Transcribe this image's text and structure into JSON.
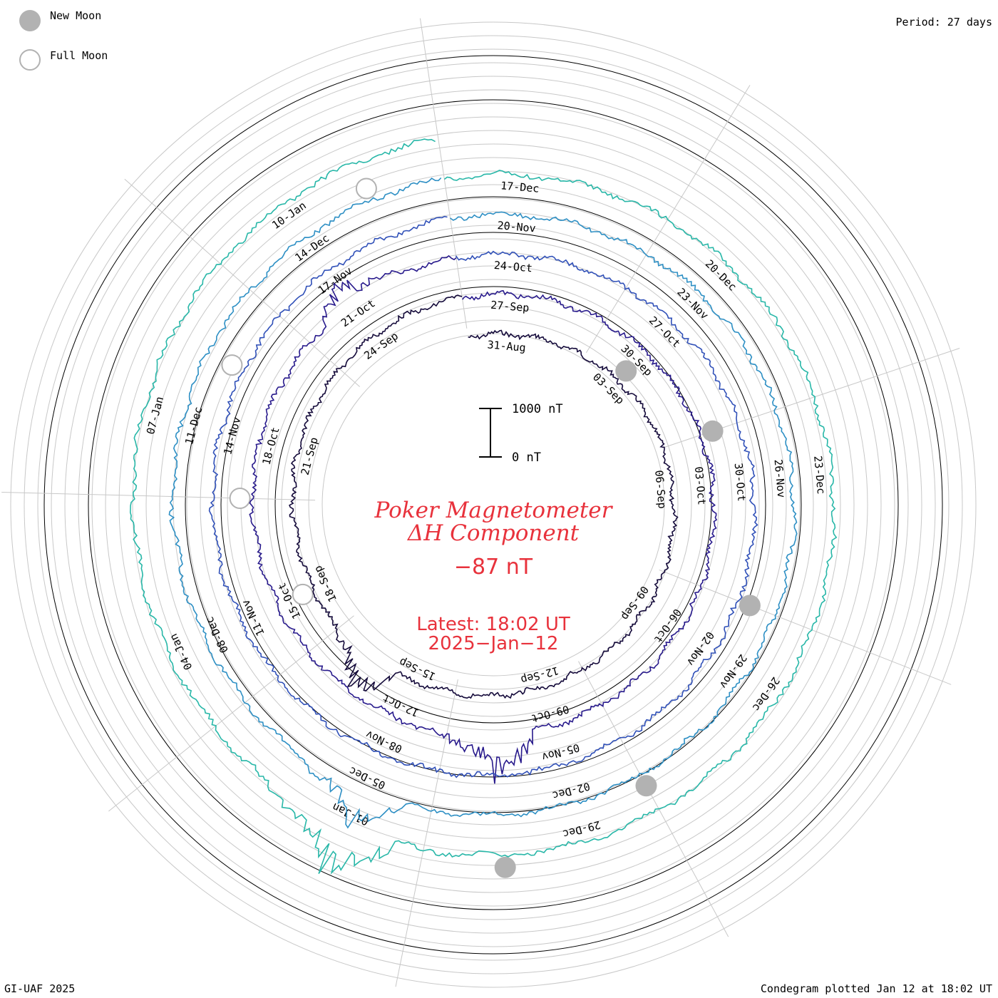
{
  "legend": {
    "new_moon_label": "New Moon",
    "full_moon_label": "Full Moon",
    "new_moon_color": "#b2b2b2",
    "full_moon_color": "#ffffff",
    "full_moon_stroke": "#b2b2b2"
  },
  "period_label": "Period: 27 days",
  "credit": "GI-UAF 2025",
  "plotted_label": "Condegram plotted Jan 12 at 18:02 UT",
  "center": {
    "title_line1": "Poker Magnetometer",
    "title_line2": "ΔH Component",
    "current_value": "−87 nT",
    "latest_label": "Latest: 18:02 UT",
    "latest_date": "2025−Jan−12"
  },
  "scale_bar": {
    "top_label": "1000 nT",
    "bottom_label": "0 nT",
    "top_value_nT": 1000,
    "bottom_value_nT": 0
  },
  "chart_data": {
    "type": "line",
    "subtype": "condegram-spiral",
    "period_days": 27,
    "start_date": "2024-08-30",
    "end_date": "2025-01-12",
    "latest_value_nT": -87,
    "grid": true,
    "axis_color_grid": "#c8c8c8",
    "date_labels": [
      {
        "label": "31-Aug",
        "date": "2024-08-31"
      },
      {
        "label": "03-Sep",
        "date": "2024-09-03"
      },
      {
        "label": "06-Sep",
        "date": "2024-09-06"
      },
      {
        "label": "09-Sep",
        "date": "2024-09-09"
      },
      {
        "label": "12-Sep",
        "date": "2024-09-12"
      },
      {
        "label": "15-Sep",
        "date": "2024-09-15"
      },
      {
        "label": "18-Sep",
        "date": "2024-09-18"
      },
      {
        "label": "21-Sep",
        "date": "2024-09-21"
      },
      {
        "label": "24-Sep",
        "date": "2024-09-24"
      },
      {
        "label": "27-Sep",
        "date": "2024-09-27"
      },
      {
        "label": "30-Sep",
        "date": "2024-09-30"
      },
      {
        "label": "03-Oct",
        "date": "2024-10-03"
      },
      {
        "label": "06-Oct",
        "date": "2024-10-06"
      },
      {
        "label": "09-Oct",
        "date": "2024-10-09"
      },
      {
        "label": "12-Oct",
        "date": "2024-10-12"
      },
      {
        "label": "15-Oct",
        "date": "2024-10-15"
      },
      {
        "label": "18-Oct",
        "date": "2024-10-18"
      },
      {
        "label": "21-Oct",
        "date": "2024-10-21"
      },
      {
        "label": "24-Oct",
        "date": "2024-10-24"
      },
      {
        "label": "27-Oct",
        "date": "2024-10-27"
      },
      {
        "label": "30-Oct",
        "date": "2024-10-30"
      },
      {
        "label": "02-Nov",
        "date": "2024-11-02"
      },
      {
        "label": "05-Nov",
        "date": "2024-11-05"
      },
      {
        "label": "08-Nov",
        "date": "2024-11-08"
      },
      {
        "label": "11-Nov",
        "date": "2024-11-11"
      },
      {
        "label": "14-Nov",
        "date": "2024-11-14"
      },
      {
        "label": "17-Nov",
        "date": "2024-11-17"
      },
      {
        "label": "20-Nov",
        "date": "2024-11-20"
      },
      {
        "label": "23-Nov",
        "date": "2024-11-23"
      },
      {
        "label": "26-Nov",
        "date": "2024-11-26"
      },
      {
        "label": "29-Nov",
        "date": "2024-11-29"
      },
      {
        "label": "02-Dec",
        "date": "2024-12-02"
      },
      {
        "label": "05-Dec",
        "date": "2024-12-05"
      },
      {
        "label": "08-Dec",
        "date": "2024-12-08"
      },
      {
        "label": "11-Dec",
        "date": "2024-12-11"
      },
      {
        "label": "14-Dec",
        "date": "2024-12-14"
      },
      {
        "label": "17-Dec",
        "date": "2024-12-17"
      },
      {
        "label": "20-Dec",
        "date": "2024-12-20"
      },
      {
        "label": "23-Dec",
        "date": "2024-12-23"
      },
      {
        "label": "26-Dec",
        "date": "2024-12-26"
      },
      {
        "label": "29-Dec",
        "date": "2024-12-29"
      },
      {
        "label": "01-Jan",
        "date": "2025-01-01"
      },
      {
        "label": "04-Jan",
        "date": "2025-01-04"
      },
      {
        "label": "07-Jan",
        "date": "2025-01-07"
      },
      {
        "label": "10-Jan",
        "date": "2025-01-10"
      }
    ],
    "moon_phases": [
      {
        "type": "new",
        "date": "2024-09-03"
      },
      {
        "type": "full",
        "date": "2024-09-18"
      },
      {
        "type": "new",
        "date": "2024-10-02"
      },
      {
        "type": "full",
        "date": "2024-10-17"
      },
      {
        "type": "new",
        "date": "2024-11-01"
      },
      {
        "type": "full",
        "date": "2024-11-15"
      },
      {
        "type": "new",
        "date": "2024-12-01"
      },
      {
        "type": "full",
        "date": "2024-12-15"
      },
      {
        "type": "new",
        "date": "2024-12-30"
      }
    ],
    "series_colors": [
      "#140a3a",
      "#281a8c",
      "#3050b8",
      "#2d8fc4",
      "#28b7a8",
      "#48b848",
      "#7ab820",
      "#c89a10",
      "#c8561a",
      "#b01010"
    ],
    "notable_disturbances_nT": [
      {
        "date": "2024-09-16",
        "approx_min_nT": -900
      },
      {
        "date": "2024-10-10",
        "approx_min_nT": -1000
      },
      {
        "date": "2024-10-21",
        "approx_min_nT": -500
      },
      {
        "date": "2024-12-05",
        "approx_min_nT": -700
      },
      {
        "date": "2025-01-01",
        "approx_min_nT": -1000
      }
    ]
  }
}
